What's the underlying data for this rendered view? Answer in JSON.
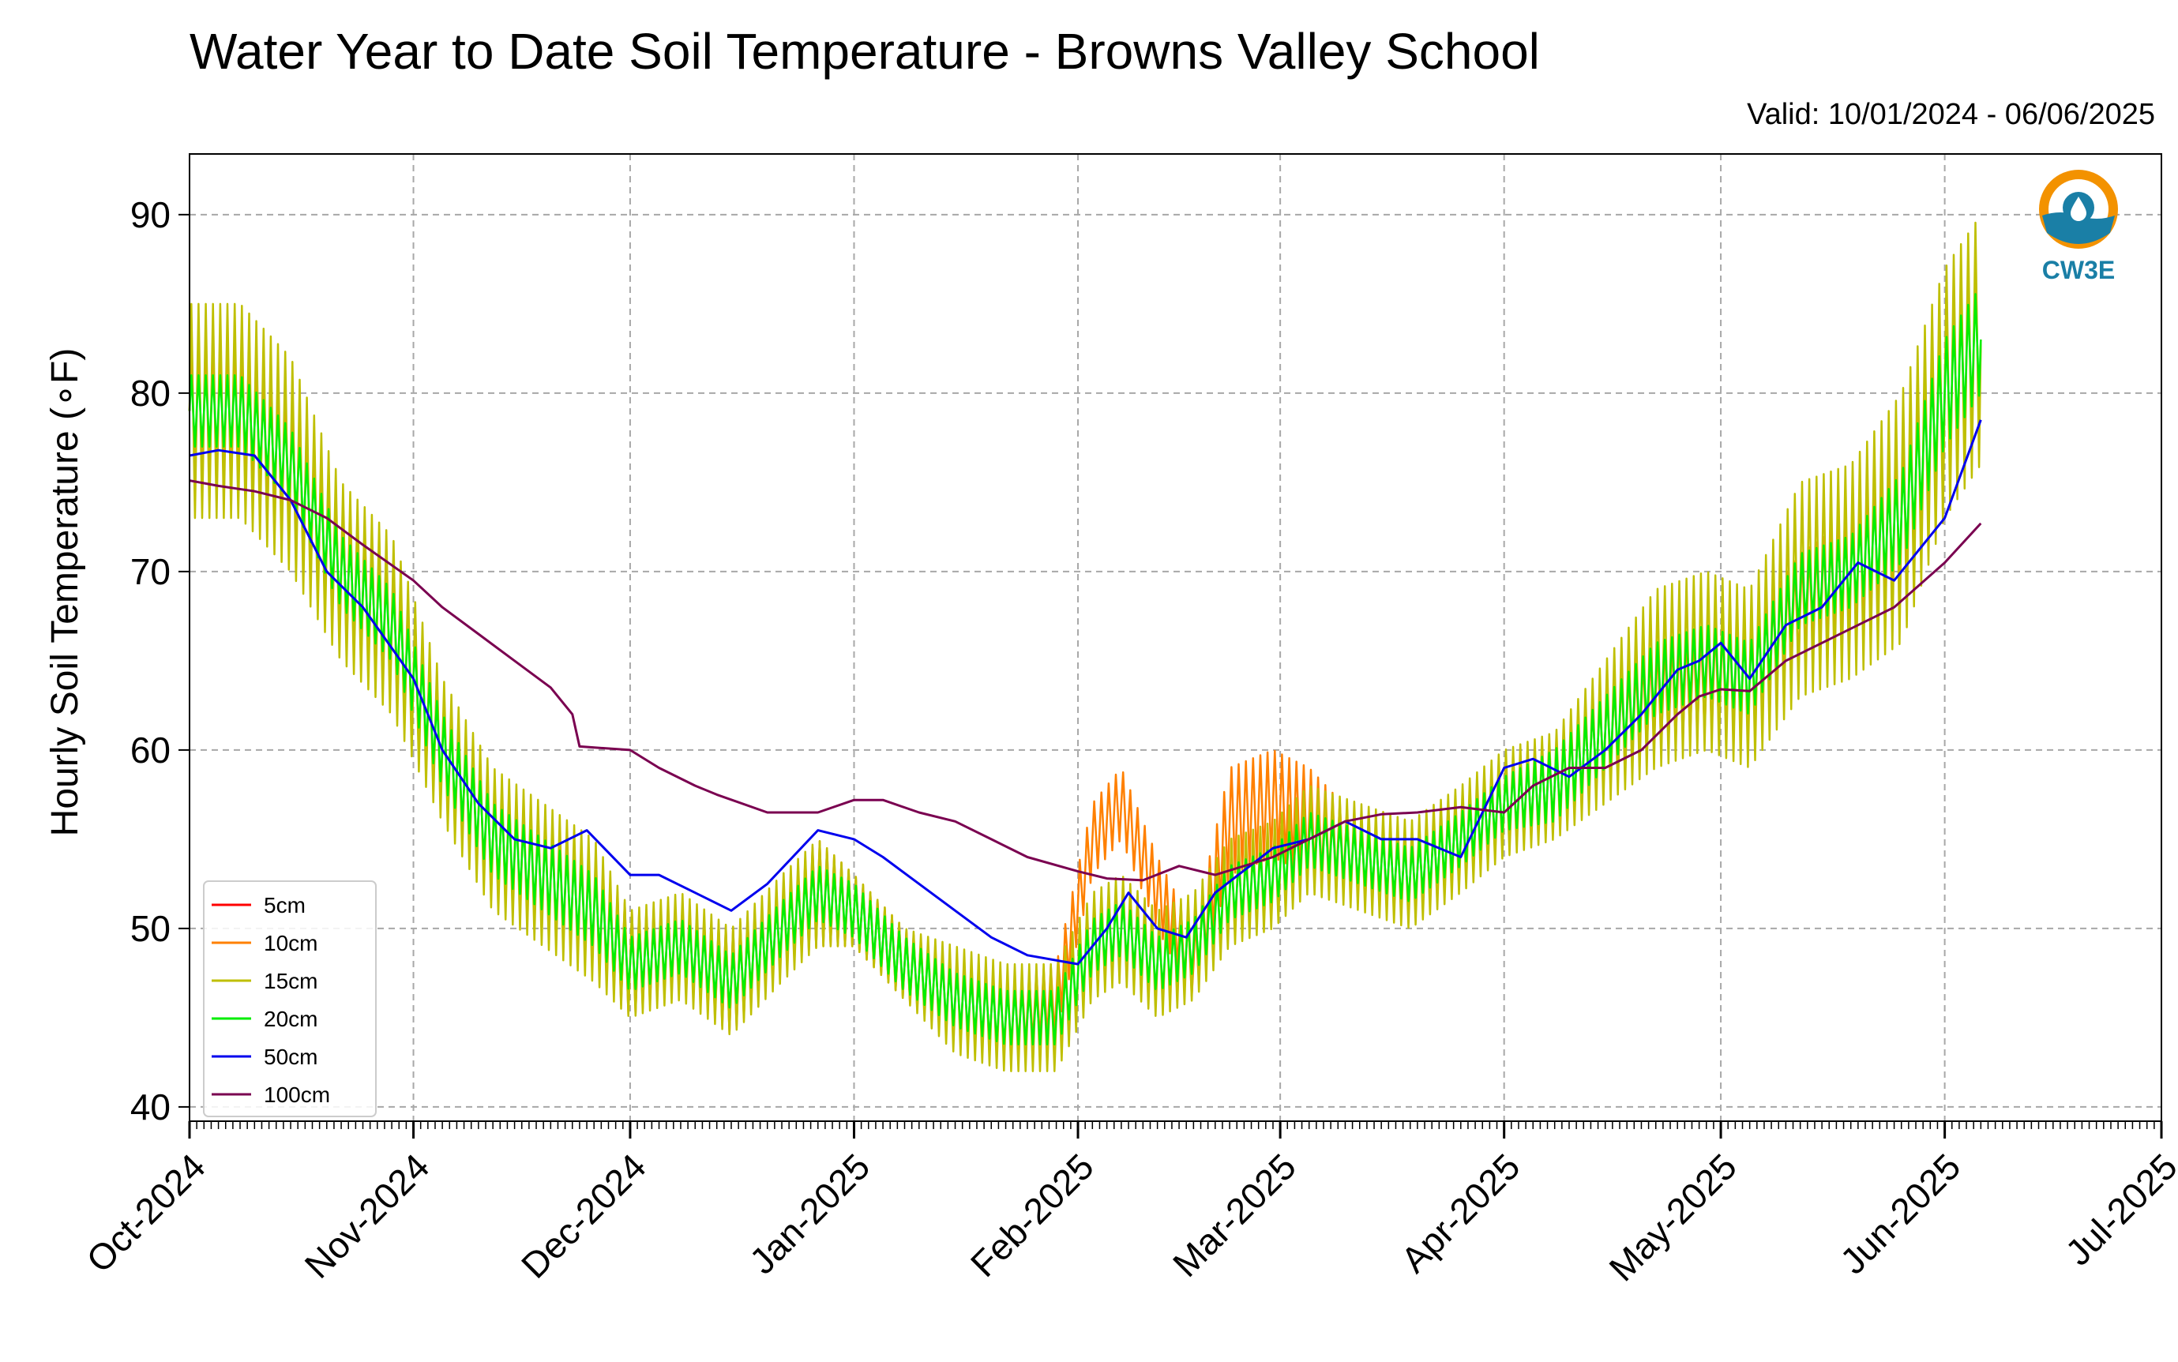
{
  "page": {
    "title": "Water Year to Date Soil Temperature - Browns Valley School",
    "valid": "Valid: 10/01/2024 - 06/06/2025",
    "logo_text": "CW3E"
  },
  "chart_data": {
    "type": "line",
    "title": "Water Year to Date Soil Temperature - Browns Valley School",
    "subtitle": "Valid: 10/01/2024 - 06/06/2025",
    "ylabel": "Hourly Soil Temperature (∘F)",
    "xlabel": "",
    "ylim": [
      39.2,
      93.4
    ],
    "xlim": [
      "2024-10-01",
      "2025-07-01"
    ],
    "yticks": [
      40,
      50,
      60,
      70,
      80,
      90
    ],
    "xticks": [
      "2024-10-01",
      "2024-11-01",
      "2024-12-01",
      "2025-01-01",
      "2025-02-01",
      "2025-03-01",
      "2025-04-01",
      "2025-05-01",
      "2025-06-01",
      "2025-07-01"
    ],
    "xtick_labels": [
      "Oct-2024",
      "Nov-2024",
      "Dec-2024",
      "Jan-2025",
      "Feb-2025",
      "Mar-2025",
      "Apr-2025",
      "May-2025",
      "Jun-2025",
      "Jul-2025"
    ],
    "grid": true,
    "legend_position": "lower-left",
    "series": [
      {
        "name": "5cm",
        "color": "#ff0000",
        "kind": "daily",
        "x": [],
        "mean": [],
        "amp": []
      },
      {
        "name": "10cm",
        "color": "#ff8000",
        "kind": "daily",
        "x": [
          "2024-10-01",
          "2024-10-08",
          "2024-10-15",
          "2024-10-22",
          "2024-10-29",
          "2024-11-05",
          "2024-11-12",
          "2024-11-19",
          "2024-11-26",
          "2024-12-01",
          "2024-12-08",
          "2024-12-15",
          "2024-12-22",
          "2024-12-27",
          "2025-01-01",
          "2025-01-08",
          "2025-01-15",
          "2025-01-22",
          "2025-01-29",
          "2025-02-03",
          "2025-02-07",
          "2025-02-12",
          "2025-02-17",
          "2025-02-22",
          "2025-02-28",
          "2025-03-05",
          "2025-03-12",
          "2025-03-19",
          "2025-03-26",
          "2025-04-01",
          "2025-04-08",
          "2025-04-15",
          "2025-04-22",
          "2025-04-29",
          "2025-05-05",
          "2025-05-12",
          "2025-05-19",
          "2025-05-26",
          "2025-06-01",
          "2025-06-06"
        ],
        "mean": [
          79,
          79,
          76,
          70,
          67,
          60,
          55,
          53,
          51,
          48,
          49,
          47,
          50,
          52,
          51,
          48,
          46,
          45,
          46,
          55,
          57,
          52,
          48,
          56,
          57,
          56,
          54,
          53,
          55,
          57,
          58,
          61,
          63,
          64,
          64,
          68,
          70,
          73,
          80,
          83
        ],
        "amp": [
          4,
          4,
          4,
          4,
          4,
          3,
          3,
          3,
          3,
          3,
          2,
          3,
          2,
          3,
          2,
          2,
          2,
          2,
          2,
          2,
          2,
          2,
          2,
          3,
          3,
          3,
          2,
          2,
          2,
          2,
          2,
          2,
          3,
          3,
          3,
          3,
          3,
          4,
          5,
          5
        ]
      },
      {
        "name": "15cm",
        "color": "#bfbf00",
        "kind": "daily",
        "x": [
          "2024-10-01",
          "2024-10-08",
          "2024-10-15",
          "2024-10-22",
          "2024-10-29",
          "2024-11-05",
          "2024-11-12",
          "2024-11-19",
          "2024-11-26",
          "2024-12-01",
          "2024-12-08",
          "2024-12-15",
          "2024-12-22",
          "2024-12-27",
          "2025-01-01",
          "2025-01-08",
          "2025-01-15",
          "2025-01-22",
          "2025-01-29",
          "2025-02-03",
          "2025-02-07",
          "2025-02-12",
          "2025-02-17",
          "2025-02-22",
          "2025-02-28",
          "2025-03-05",
          "2025-03-12",
          "2025-03-19",
          "2025-03-26",
          "2025-04-01",
          "2025-04-08",
          "2025-04-15",
          "2025-04-22",
          "2025-04-29",
          "2025-05-05",
          "2025-05-12",
          "2025-05-19",
          "2025-05-26",
          "2025-06-01",
          "2025-06-06"
        ],
        "mean": [
          79,
          79,
          76,
          70,
          67,
          60,
          55,
          53,
          51,
          48,
          49,
          47,
          50,
          52,
          51,
          48,
          46,
          45,
          45,
          49,
          50,
          48,
          49,
          52,
          53,
          55,
          54,
          53,
          55,
          57,
          58,
          61,
          64,
          65,
          64,
          69,
          70,
          73,
          80,
          83
        ],
        "amp": [
          6,
          6,
          6,
          5,
          5,
          4,
          4,
          4,
          4,
          3,
          3,
          3,
          3,
          3,
          2,
          2,
          3,
          3,
          3,
          3,
          3,
          3,
          3,
          3,
          3,
          3,
          3,
          3,
          3,
          3,
          3,
          4,
          5,
          5,
          5,
          6,
          6,
          7,
          7,
          7
        ]
      },
      {
        "name": "20cm",
        "color": "#00ee00",
        "kind": "daily",
        "x": [
          "2024-10-01",
          "2024-10-08",
          "2024-10-15",
          "2024-10-22",
          "2024-10-29",
          "2024-11-05",
          "2024-11-12",
          "2024-11-19",
          "2024-11-26",
          "2024-12-01",
          "2024-12-08",
          "2024-12-15",
          "2024-12-22",
          "2024-12-27",
          "2025-01-01",
          "2025-01-08",
          "2025-01-15",
          "2025-01-22",
          "2025-01-29",
          "2025-02-03",
          "2025-02-07",
          "2025-02-12",
          "2025-02-17",
          "2025-02-22",
          "2025-02-28",
          "2025-03-05",
          "2025-03-12",
          "2025-03-19",
          "2025-03-26",
          "2025-04-01",
          "2025-04-08",
          "2025-04-15",
          "2025-04-22",
          "2025-04-29",
          "2025-05-05",
          "2025-05-12",
          "2025-05-19",
          "2025-05-26",
          "2025-06-01",
          "2025-06-06"
        ],
        "mean": [
          79,
          79,
          76,
          70,
          67,
          60,
          55,
          53,
          51,
          48,
          49,
          47,
          50,
          52,
          51,
          48,
          46,
          45,
          45,
          49,
          50,
          48,
          49,
          52,
          53,
          55,
          54,
          53,
          55,
          57,
          58,
          61,
          64,
          65,
          64,
          69,
          70,
          73,
          80,
          83
        ],
        "amp": [
          2,
          2,
          2,
          2,
          2,
          2,
          2,
          2,
          2,
          1.5,
          1.5,
          1.5,
          1.5,
          1.5,
          1.5,
          1.5,
          1.5,
          1.5,
          1.5,
          1.5,
          1.5,
          1.5,
          1.5,
          1.5,
          1.5,
          1.5,
          1.5,
          1.5,
          1.5,
          1.5,
          2,
          2,
          2,
          2,
          2,
          2,
          2,
          2.5,
          3,
          3
        ]
      },
      {
        "name": "50cm",
        "color": "#0000ee",
        "kind": "line",
        "x": [
          "2024-10-01",
          "2024-10-05",
          "2024-10-10",
          "2024-10-15",
          "2024-10-20",
          "2024-10-25",
          "2024-11-01",
          "2024-11-05",
          "2024-11-10",
          "2024-11-15",
          "2024-11-20",
          "2024-11-25",
          "2024-12-01",
          "2024-12-05",
          "2024-12-10",
          "2024-12-15",
          "2024-12-20",
          "2024-12-27",
          "2025-01-01",
          "2025-01-05",
          "2025-01-10",
          "2025-01-15",
          "2025-01-20",
          "2025-01-25",
          "2025-02-01",
          "2025-02-05",
          "2025-02-08",
          "2025-02-12",
          "2025-02-16",
          "2025-02-20",
          "2025-02-28",
          "2025-03-05",
          "2025-03-10",
          "2025-03-15",
          "2025-03-20",
          "2025-03-26",
          "2025-04-01",
          "2025-04-05",
          "2025-04-10",
          "2025-04-15",
          "2025-04-20",
          "2025-04-25",
          "2025-04-28",
          "2025-05-01",
          "2025-05-05",
          "2025-05-10",
          "2025-05-15",
          "2025-05-20",
          "2025-05-25",
          "2025-06-01",
          "2025-06-06"
        ],
        "y": [
          76.5,
          76.8,
          76.5,
          74,
          70,
          68,
          64,
          60,
          57,
          55,
          54.5,
          55.5,
          53,
          53,
          52,
          51,
          52.5,
          55.5,
          55,
          54,
          52.5,
          51,
          49.5,
          48.5,
          48,
          50,
          52,
          50,
          49.5,
          52,
          54.5,
          55,
          56,
          55,
          55,
          54,
          59,
          59.5,
          58.5,
          60,
          62,
          64.5,
          65,
          66,
          64,
          67,
          68,
          70.5,
          69.5,
          73,
          78.5
        ]
      },
      {
        "name": "100cm",
        "color": "#7a0050",
        "kind": "line",
        "x": [
          "2024-10-01",
          "2024-10-05",
          "2024-10-10",
          "2024-10-15",
          "2024-10-20",
          "2024-10-25",
          "2024-11-01",
          "2024-11-05",
          "2024-11-10",
          "2024-11-15",
          "2024-11-20",
          "2024-11-23",
          "2024-11-24",
          "2024-12-01",
          "2024-12-05",
          "2024-12-10",
          "2024-12-13",
          "2024-12-20",
          "2024-12-27",
          "2025-01-01",
          "2025-01-05",
          "2025-01-10",
          "2025-01-15",
          "2025-01-20",
          "2025-01-25",
          "2025-02-01",
          "2025-02-05",
          "2025-02-10",
          "2025-02-15",
          "2025-02-20",
          "2025-02-28",
          "2025-03-05",
          "2025-03-10",
          "2025-03-15",
          "2025-03-20",
          "2025-03-26",
          "2025-04-01",
          "2025-04-05",
          "2025-04-10",
          "2025-04-15",
          "2025-04-20",
          "2025-04-25",
          "2025-04-28",
          "2025-05-01",
          "2025-05-05",
          "2025-05-10",
          "2025-05-15",
          "2025-05-20",
          "2025-05-25",
          "2025-06-01",
          "2025-06-06"
        ],
        "y": [
          75.1,
          74.8,
          74.5,
          74,
          73,
          71.5,
          69.5,
          68,
          66.5,
          65,
          63.5,
          62,
          60.2,
          60,
          59,
          58,
          57.5,
          56.5,
          56.5,
          57.2,
          57.2,
          56.5,
          56,
          55,
          54,
          53.2,
          52.8,
          52.7,
          53.5,
          53,
          54,
          55,
          56,
          56.4,
          56.5,
          56.8,
          56.5,
          58,
          59,
          59,
          60,
          62,
          63,
          63.4,
          63.3,
          65,
          66,
          67,
          68,
          70.5,
          72.7
        ]
      }
    ]
  }
}
